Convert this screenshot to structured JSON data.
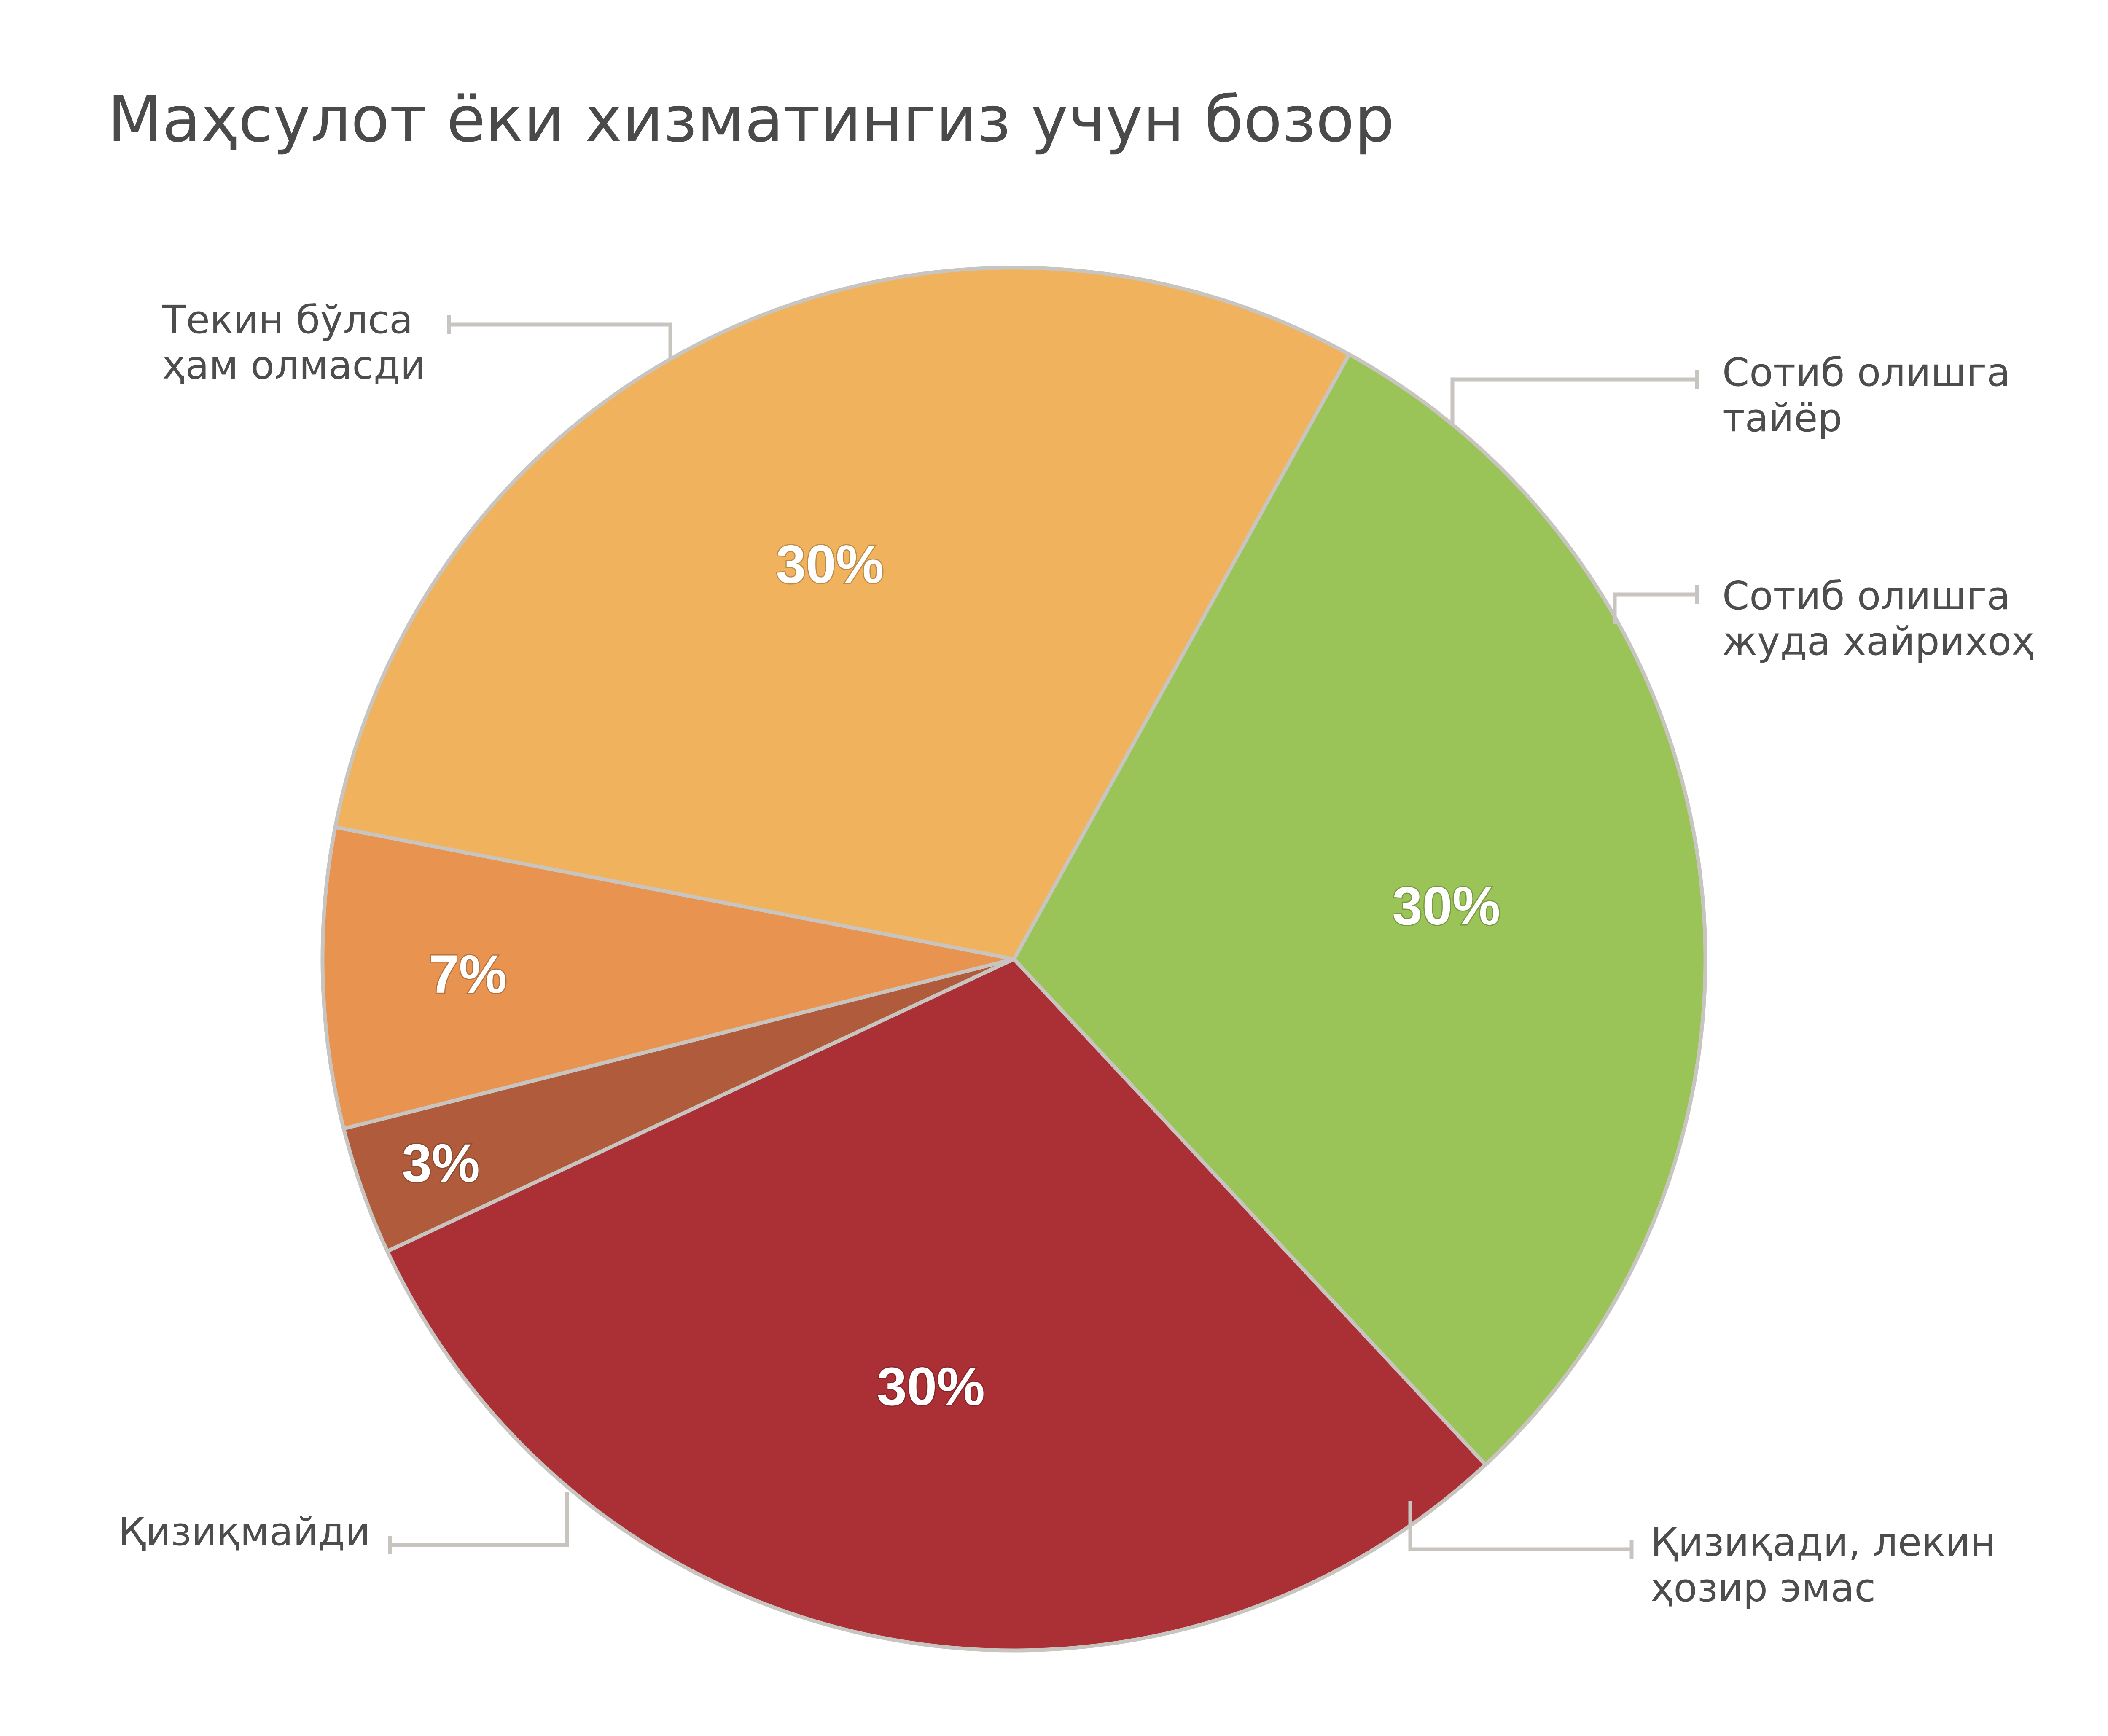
{
  "chart_data": {
    "type": "pie",
    "title": "Маҳсулот ёки хизматингиз учун бозор",
    "slices": [
      {
        "label_lines": [
          "Текин бўлса",
          "ҳам олмасди"
        ],
        "value": 30,
        "value_label": "30%",
        "color": "#ab3036"
      },
      {
        "label_lines": [
          "Сотиб олишга",
          "тайёр"
        ],
        "value": 3,
        "value_label": "3%",
        "color": "#b05c3c"
      },
      {
        "label_lines": [
          "Сотиб олишга",
          "жуда хайрихоҳ"
        ],
        "value": 7,
        "value_label": "7%",
        "color": "#e89350"
      },
      {
        "label_lines": [
          "Қизиқади, лекин",
          "ҳозир эмас"
        ],
        "value": 30,
        "value_label": "30%",
        "color": "#f0b25c"
      },
      {
        "label_lines": [
          "Қизиқмайди"
        ],
        "value": 30,
        "value_label": "30%",
        "color": "#9ac358"
      }
    ],
    "legend": "callout labels around pie"
  }
}
